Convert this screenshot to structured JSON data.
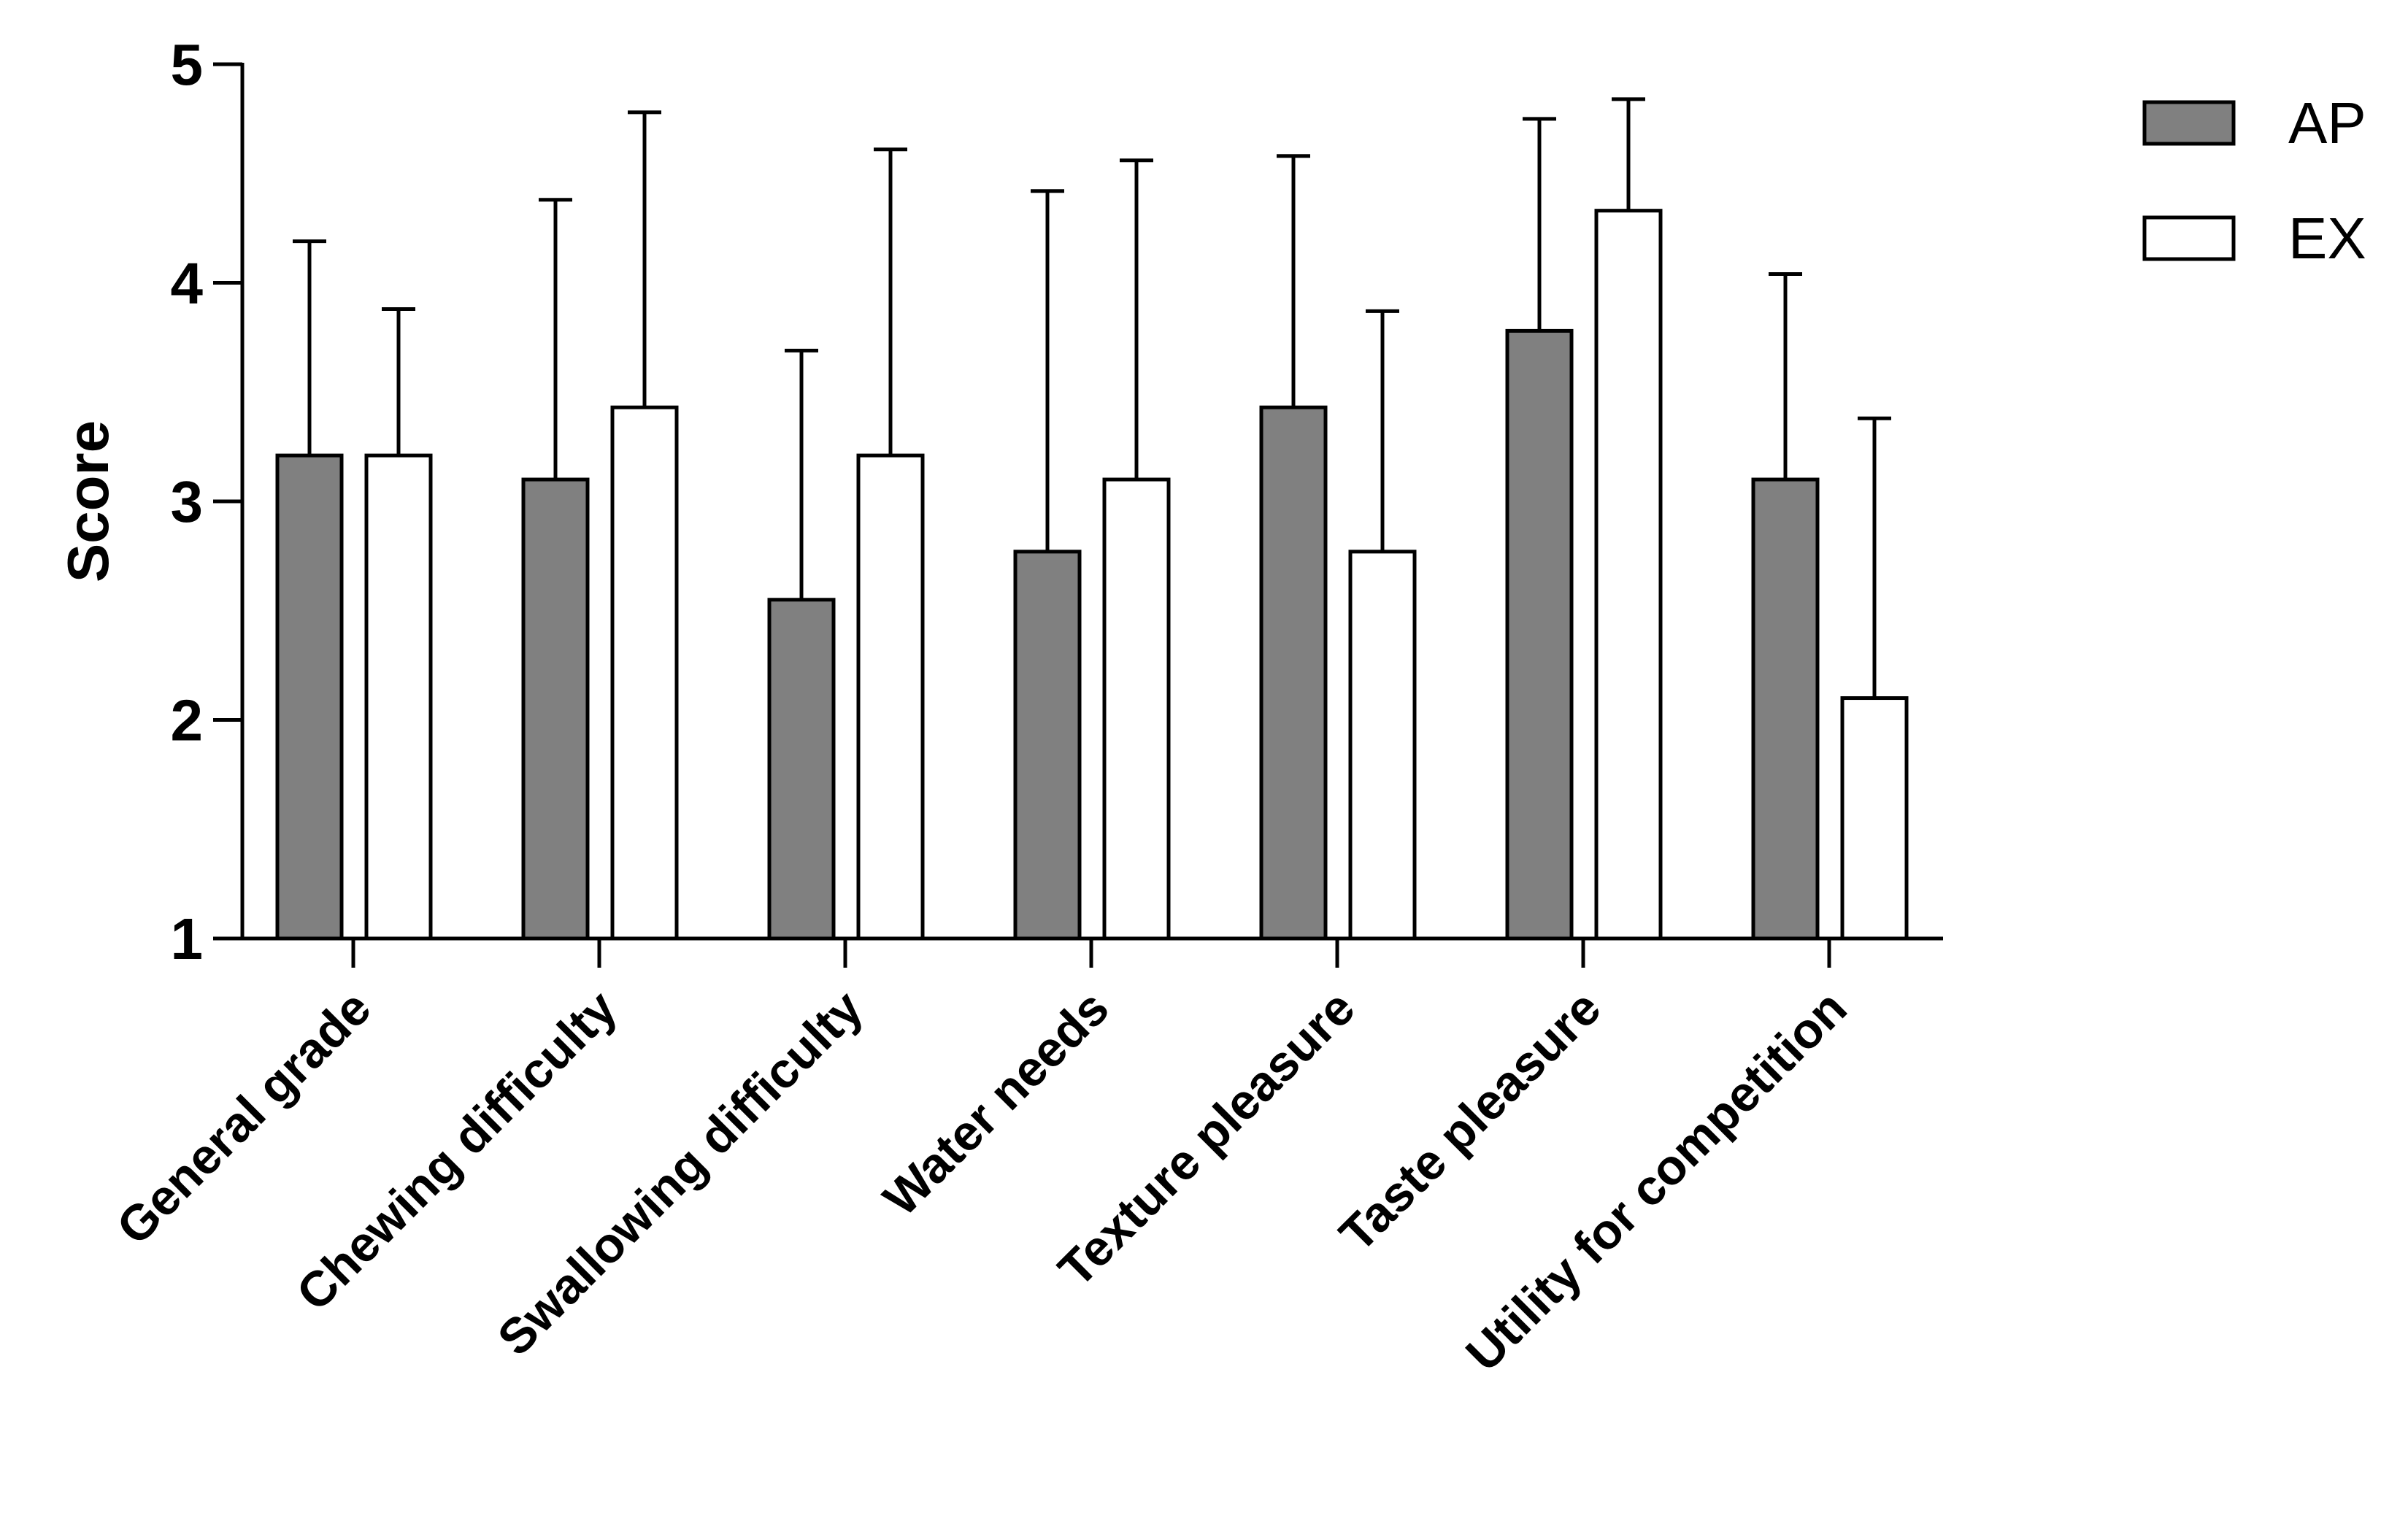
{
  "chart_data": {
    "type": "bar",
    "y_label": "Score",
    "categories": [
      "General grade",
      "Chewing difficulty",
      "Swallowing difficulty",
      "Water needs",
      "Texture pleasure",
      "Taste pleasure",
      "Utility for competition"
    ],
    "series": [
      {
        "name": "AP",
        "color": "#808080",
        "values": [
          3.21,
          3.1,
          2.55,
          2.77,
          3.43,
          3.78,
          3.1
        ],
        "errors": [
          0.98,
          1.28,
          1.14,
          1.65,
          1.15,
          0.97,
          0.94
        ]
      },
      {
        "name": "EX",
        "color": "#ffffff",
        "values": [
          3.21,
          3.43,
          3.21,
          3.1,
          2.77,
          4.33,
          2.1
        ],
        "errors": [
          0.67,
          1.35,
          1.4,
          1.46,
          1.1,
          0.51,
          1.28
        ]
      }
    ],
    "ylim": [
      1,
      5
    ],
    "yticks": [
      1,
      2,
      3,
      4,
      5
    ],
    "legend": "top-right"
  }
}
